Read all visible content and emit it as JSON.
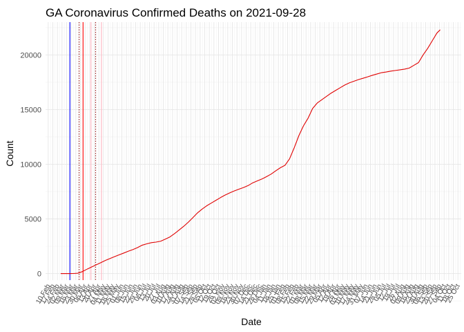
{
  "chart_data": {
    "type": "line",
    "title": "GA Coronavirus Confirmed Deaths on 2021-09-28",
    "xlabel": "Date",
    "ylabel": "Count",
    "ylim": [
      -600,
      23000
    ],
    "xlim": [
      "2020-02-06",
      "2021-10-30"
    ],
    "grid": true,
    "yticks": [
      0,
      5000,
      10000,
      15000,
      20000
    ],
    "x_tick_labels": [
      "10 Feb",
      "17 Feb",
      "24 Feb",
      "02 Mar",
      "09 Mar",
      "16 Mar",
      "23 Mar",
      "30 Mar",
      "06 Apr",
      "13 Apr",
      "20 Apr",
      "27 Apr",
      "04 May",
      "11 May",
      "18 May",
      "25 May",
      "01 Jun",
      "08 Jun",
      "15 Jun",
      "22 Jun",
      "29 Jun",
      "06 Jul",
      "13 Jul",
      "20 Jul",
      "27 Jul",
      "03 Aug",
      "10 Aug",
      "17 Aug",
      "24 Aug",
      "31 Aug",
      "07 Sep",
      "14 Sep",
      "21 Sep",
      "28 Sep",
      "05 Oct",
      "12 Oct",
      "19 Oct",
      "26 Oct",
      "02 Nov",
      "09 Nov",
      "16 Nov",
      "23 Nov",
      "30 Nov",
      "07 Dec",
      "14 Dec",
      "21 Dec",
      "28 Dec",
      "04 Jan",
      "11 Jan",
      "18 Jan",
      "25 Jan",
      "01 Feb",
      "08 Feb",
      "15 Feb",
      "22 Feb",
      "01 Mar",
      "08 Mar",
      "15 Mar",
      "22 Mar",
      "29 Mar",
      "05 Apr",
      "12 Apr",
      "19 Apr",
      "26 Apr",
      "03 May",
      "10 May",
      "17 May",
      "24 May",
      "31 May",
      "07 Jun",
      "14 Jun",
      "21 Jun",
      "28 Jun",
      "05 Jul",
      "12 Jul",
      "19 Jul",
      "26 Jul",
      "02 Aug",
      "09 Aug",
      "16 Aug",
      "23 Aug",
      "30 Aug",
      "06 Sep",
      "13 Sep",
      "20 Sep",
      "27 Sep",
      "04 Oct",
      "11 Oct",
      "18 Oct",
      "25 Oct"
    ],
    "x_tick_dates": [
      "2020-02-10",
      "2020-02-17",
      "2020-02-24",
      "2020-03-02",
      "2020-03-09",
      "2020-03-16",
      "2020-03-23",
      "2020-03-30",
      "2020-04-06",
      "2020-04-13",
      "2020-04-20",
      "2020-04-27",
      "2020-05-04",
      "2020-05-11",
      "2020-05-18",
      "2020-05-25",
      "2020-06-01",
      "2020-06-08",
      "2020-06-15",
      "2020-06-22",
      "2020-06-29",
      "2020-07-06",
      "2020-07-13",
      "2020-07-20",
      "2020-07-27",
      "2020-08-03",
      "2020-08-10",
      "2020-08-17",
      "2020-08-24",
      "2020-08-31",
      "2020-09-07",
      "2020-09-14",
      "2020-09-21",
      "2020-09-28",
      "2020-10-05",
      "2020-10-12",
      "2020-10-19",
      "2020-10-26",
      "2020-11-02",
      "2020-11-09",
      "2020-11-16",
      "2020-11-23",
      "2020-11-30",
      "2020-12-07",
      "2020-12-14",
      "2020-12-21",
      "2020-12-28",
      "2021-01-04",
      "2021-01-11",
      "2021-01-18",
      "2021-01-25",
      "2021-02-01",
      "2021-02-08",
      "2021-02-15",
      "2021-02-22",
      "2021-03-01",
      "2021-03-08",
      "2021-03-15",
      "2021-03-22",
      "2021-03-29",
      "2021-04-05",
      "2021-04-12",
      "2021-04-19",
      "2021-04-26",
      "2021-05-03",
      "2021-05-10",
      "2021-05-17",
      "2021-05-24",
      "2021-05-31",
      "2021-06-07",
      "2021-06-14",
      "2021-06-21",
      "2021-06-28",
      "2021-07-05",
      "2021-07-12",
      "2021-07-19",
      "2021-07-26",
      "2021-08-02",
      "2021-08-09",
      "2021-08-16",
      "2021-08-23",
      "2021-08-30",
      "2021-09-06",
      "2021-09-13",
      "2021-09-20",
      "2021-09-27",
      "2021-10-04",
      "2021-10-11",
      "2021-10-18",
      "2021-10-25"
    ],
    "reference_lines": [
      {
        "date": "2020-03-14",
        "color": "#0000ff",
        "style": "solid"
      },
      {
        "date": "2020-04-03",
        "color": "#ff0000",
        "style": "solid"
      },
      {
        "date": "2020-03-28",
        "color": "#8b0000",
        "style": "dotted"
      },
      {
        "date": "2020-04-22",
        "color": "#8b0000",
        "style": "dotted"
      },
      {
        "date": "2020-04-15",
        "color": "#ffb6c1",
        "style": "solid"
      },
      {
        "date": "2020-05-01",
        "color": "#ffb6c1",
        "style": "solid"
      }
    ],
    "series": [
      {
        "color": "#e00000",
        "x": [
          "2020-02-29",
          "2020-03-12",
          "2020-03-19",
          "2020-03-26",
          "2020-04-02",
          "2020-04-09",
          "2020-04-16",
          "2020-04-23",
          "2020-04-30",
          "2020-05-07",
          "2020-05-14",
          "2020-05-21",
          "2020-05-28",
          "2020-06-04",
          "2020-06-11",
          "2020-06-18",
          "2020-06-25",
          "2020-07-02",
          "2020-07-09",
          "2020-07-16",
          "2020-07-23",
          "2020-07-30",
          "2020-08-06",
          "2020-08-13",
          "2020-08-20",
          "2020-08-27",
          "2020-09-03",
          "2020-09-10",
          "2020-09-17",
          "2020-09-24",
          "2020-10-01",
          "2020-10-08",
          "2020-10-15",
          "2020-10-22",
          "2020-10-29",
          "2020-11-05",
          "2020-11-12",
          "2020-11-19",
          "2020-11-26",
          "2020-12-03",
          "2020-12-10",
          "2020-12-17",
          "2020-12-24",
          "2020-12-31",
          "2021-01-07",
          "2021-01-14",
          "2021-01-21",
          "2021-01-28",
          "2021-02-04",
          "2021-02-11",
          "2021-02-18",
          "2021-02-25",
          "2021-03-04",
          "2021-03-11",
          "2021-03-18",
          "2021-03-25",
          "2021-04-01",
          "2021-04-08",
          "2021-04-15",
          "2021-04-22",
          "2021-04-29",
          "2021-05-06",
          "2021-05-13",
          "2021-05-20",
          "2021-05-27",
          "2021-06-03",
          "2021-06-10",
          "2021-06-17",
          "2021-06-24",
          "2021-07-01",
          "2021-07-08",
          "2021-07-15",
          "2021-07-22",
          "2021-07-29",
          "2021-08-05",
          "2021-08-12",
          "2021-08-19",
          "2021-08-26",
          "2021-09-02",
          "2021-09-09",
          "2021-09-16",
          "2021-09-23",
          "2021-09-28"
        ],
        "y": [
          0,
          0,
          1,
          30,
          180,
          400,
          600,
          800,
          1000,
          1200,
          1380,
          1550,
          1720,
          1880,
          2050,
          2200,
          2380,
          2600,
          2720,
          2830,
          2880,
          2960,
          3150,
          3350,
          3650,
          3980,
          4320,
          4700,
          5120,
          5550,
          5900,
          6200,
          6450,
          6700,
          6950,
          7180,
          7380,
          7560,
          7720,
          7870,
          8050,
          8300,
          8480,
          8650,
          8870,
          9100,
          9400,
          9680,
          9900,
          10500,
          11500,
          12600,
          13500,
          14200,
          15100,
          15600,
          15900,
          16200,
          16500,
          16750,
          17000,
          17250,
          17450,
          17600,
          17750,
          17870,
          18000,
          18140,
          18260,
          18380,
          18440,
          18520,
          18580,
          18640,
          18700,
          18800,
          19050,
          19300,
          20000,
          20600,
          21300,
          22000,
          22300
        ]
      }
    ]
  }
}
